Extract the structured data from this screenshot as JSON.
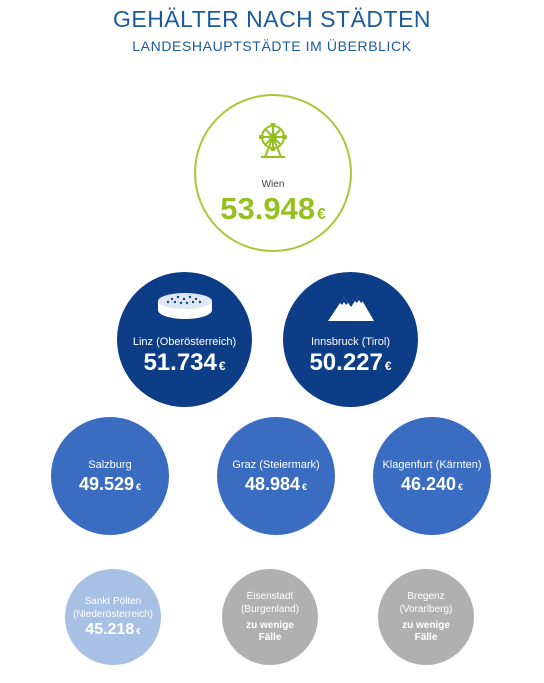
{
  "header": {
    "title": "GEHÄLTER NACH STÄDTEN",
    "subtitle": "LANDESHAUPTSTÄDTE IM ÜBERBLICK"
  },
  "colors": {
    "title": "#1b5a9e",
    "wien_accent": "#95c11f",
    "dark_blue": "#0d3d87",
    "mid_blue": "#3a6cc1",
    "light_blue": "#a7c0e4",
    "grey": "#b0b0b0"
  },
  "cities": {
    "wien": {
      "name": "Wien",
      "value": "53.948",
      "currency": "€",
      "icon": "ferris-wheel-icon"
    },
    "linz": {
      "name": "Linz (Oberösterreich)",
      "value": "51.734",
      "currency": "€",
      "icon": "cake-icon"
    },
    "innsbruck": {
      "name": "Innsbruck (Tirol)",
      "value": "50.227",
      "currency": "€",
      "icon": "mountain-icon"
    },
    "salzburg": {
      "name": "Salzburg",
      "value": "49.529",
      "currency": "€"
    },
    "graz": {
      "name": "Graz (Steiermark)",
      "value": "48.984",
      "currency": "€"
    },
    "klagenfurt": {
      "name": "Klagenfurt (Kärnten)",
      "value": "46.240",
      "currency": "€"
    },
    "stpoelten": {
      "name_line1": "Sankt Pölten",
      "name_line2": "(Niederösterreich)",
      "value": "45.218",
      "currency": "€"
    },
    "eisenstadt": {
      "name_line1": "Eisenstadt",
      "name_line2": "(Burgenland)",
      "note_line1": "zu wenige",
      "note_line2": "Fälle"
    },
    "bregenz": {
      "name_line1": "Bregenz",
      "name_line2": "(Vorarlberg)",
      "note_line1": "zu wenige",
      "note_line2": "Fälle"
    }
  }
}
